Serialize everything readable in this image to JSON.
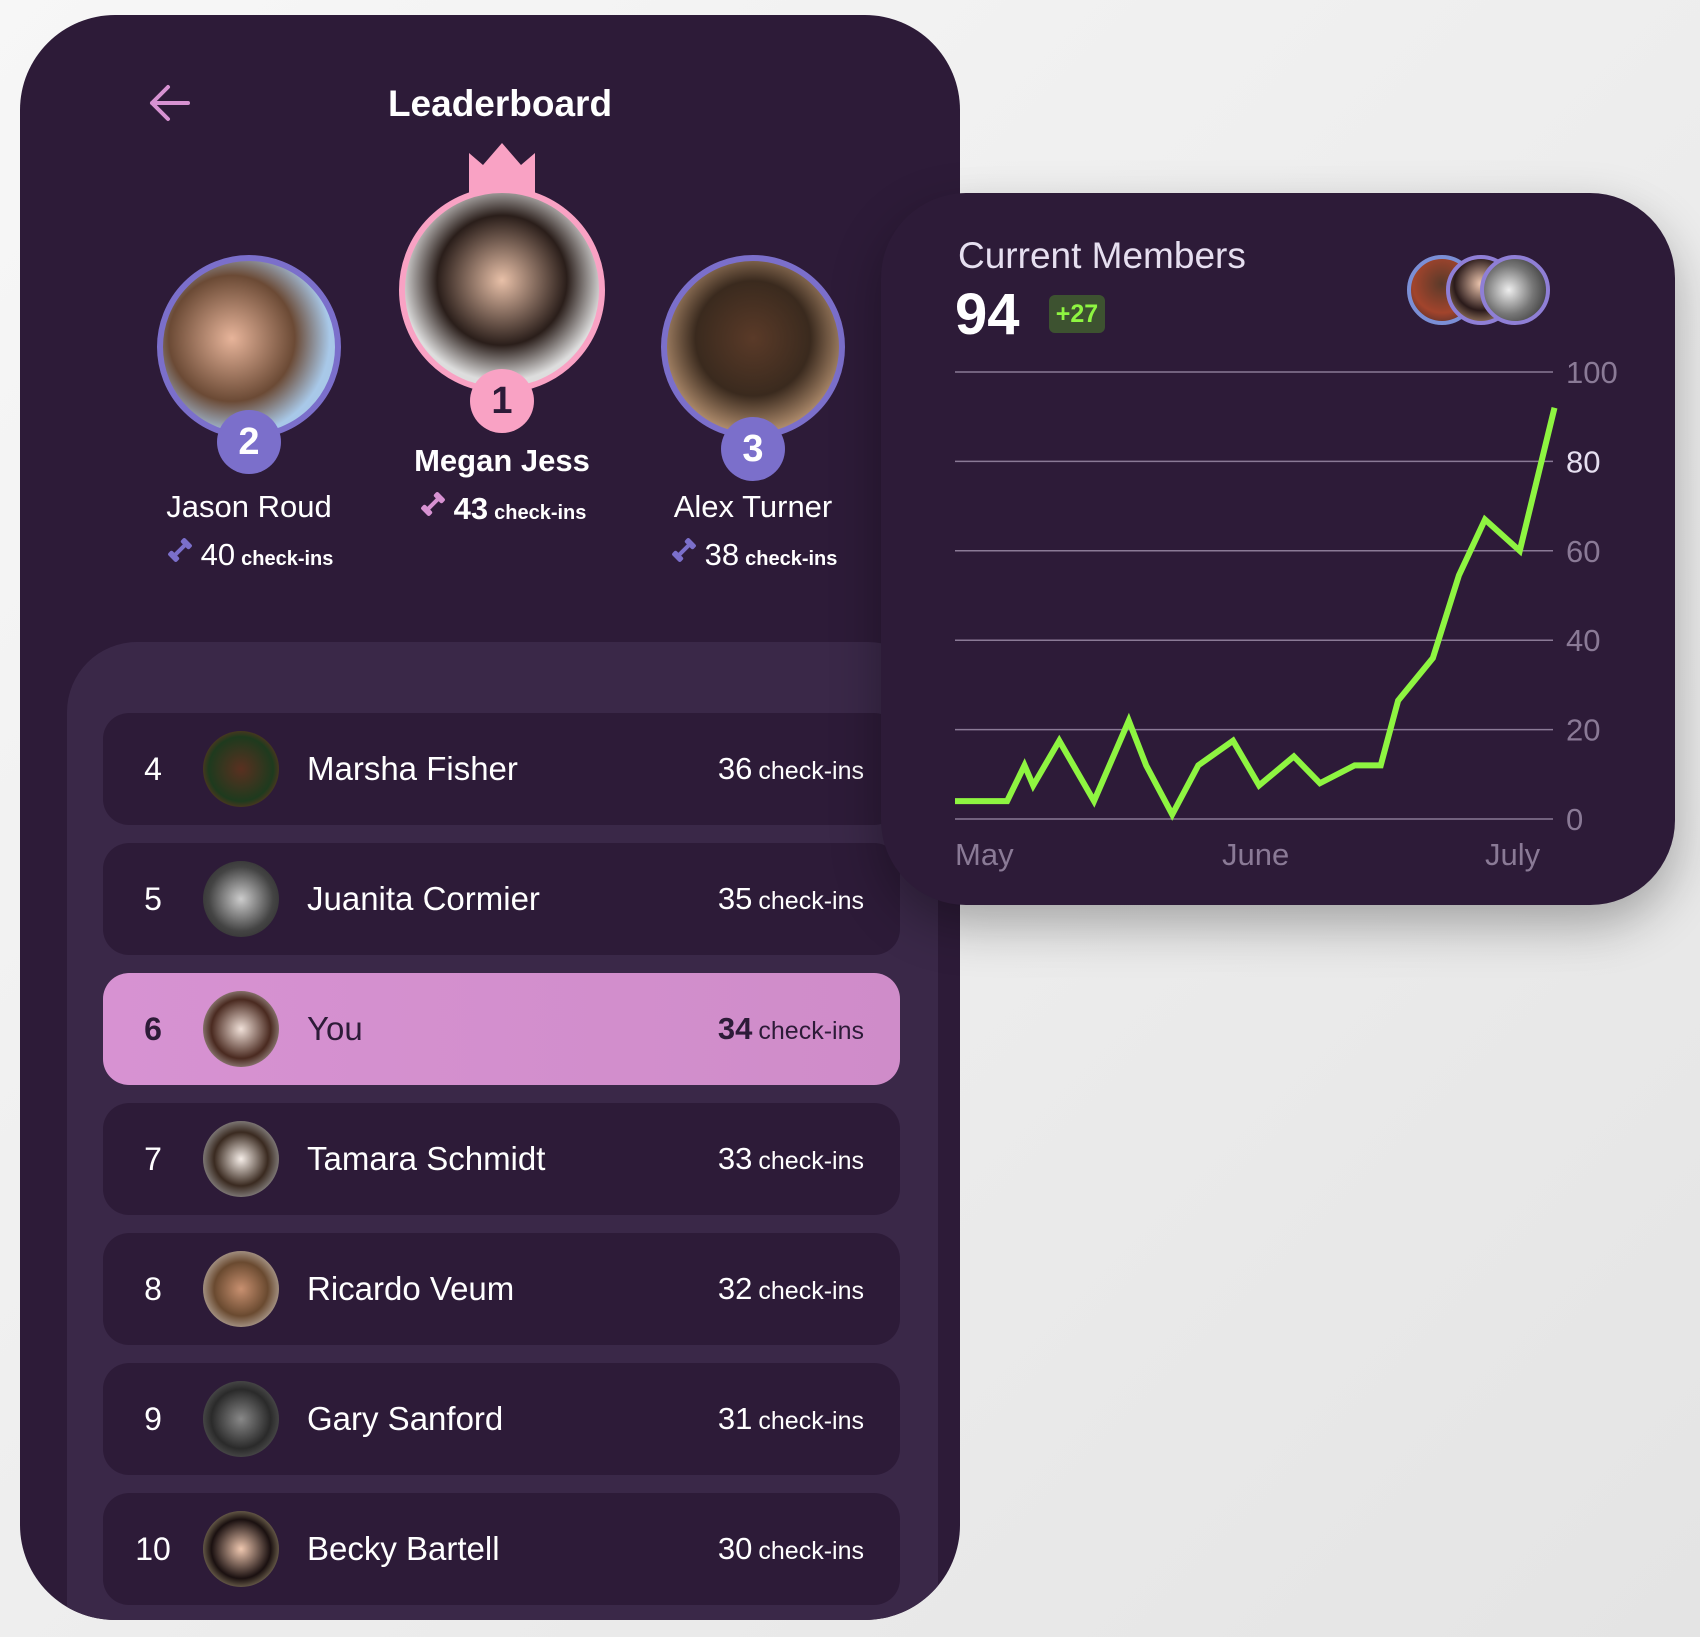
{
  "header": {
    "title": "Leaderboard",
    "back_icon": "arrow-left-icon"
  },
  "podium": [
    {
      "rank": "2",
      "name": "Jason Roud",
      "checkins": "40",
      "unit": "check-ins"
    },
    {
      "rank": "1",
      "name": "Megan Jess",
      "checkins": "43",
      "unit": "check-ins"
    },
    {
      "rank": "3",
      "name": "Alex Turner",
      "checkins": "38",
      "unit": "check-ins"
    }
  ],
  "list": [
    {
      "rank": "4",
      "name": "Marsha Fisher",
      "checkins": "36",
      "unit": "check-ins"
    },
    {
      "rank": "5",
      "name": "Juanita Cormier",
      "checkins": "35",
      "unit": "check-ins"
    },
    {
      "rank": "6",
      "name": "You",
      "checkins": "34",
      "unit": "check-ins",
      "highlight": true
    },
    {
      "rank": "7",
      "name": "Tamara Schmidt",
      "checkins": "33",
      "unit": "check-ins"
    },
    {
      "rank": "8",
      "name": "Ricardo Veum",
      "checkins": "32",
      "unit": "check-ins"
    },
    {
      "rank": "9",
      "name": "Gary Sanford",
      "checkins": "31",
      "unit": "check-ins"
    },
    {
      "rank": "10",
      "name": "Becky Bartell",
      "checkins": "30",
      "unit": "check-ins"
    }
  ],
  "members": {
    "title": "Current Members",
    "value": "94",
    "delta": "+27"
  },
  "colors": {
    "background": "#2d1b38",
    "panel": "#3a2848",
    "accent_pink": "#f9a2c4",
    "accent_purple": "#7b6fcb",
    "highlight": "#d792d2",
    "line": "#8ef541"
  },
  "chart_data": {
    "type": "line",
    "x": [
      "May 1",
      "May 7",
      "May 9",
      "May 10",
      "May 13",
      "May 17",
      "May 21",
      "May 23",
      "May 26",
      "May 29",
      "Jun 2",
      "Jun 5",
      "Jun 9",
      "Jun 12",
      "Jun 16",
      "Jun 19",
      "Jun 21",
      "Jun 25",
      "Jun 28",
      "Jul 1",
      "Jul 5",
      "Jul 9"
    ],
    "values": [
      4,
      4,
      12,
      7.5,
      17.5,
      4,
      22,
      12,
      1,
      12,
      17.5,
      7.5,
      14,
      8,
      12,
      12,
      26.5,
      36,
      54.5,
      67,
      60,
      92
    ],
    "x_tick_labels": [
      "May",
      "June",
      "July"
    ],
    "y_ticks": [
      0,
      20,
      40,
      60,
      80,
      100
    ],
    "ylim": [
      0,
      100
    ],
    "grid": true
  }
}
